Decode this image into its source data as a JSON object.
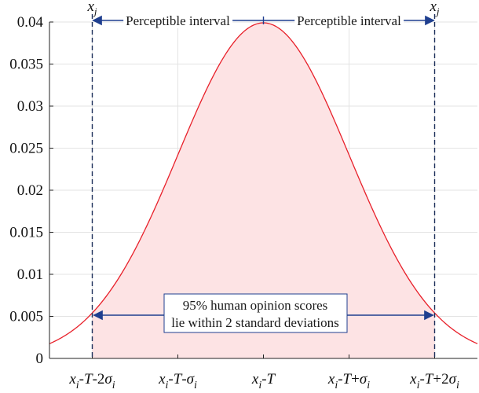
{
  "chart_data": {
    "type": "area",
    "title": "",
    "xlabel": "",
    "ylabel": "",
    "ylim": [
      0,
      0.04
    ],
    "y_ticks": [
      "0",
      "0.005",
      "0.01",
      "0.015",
      "0.02",
      "0.025",
      "0.03",
      "0.035",
      "0.04"
    ],
    "y_tick_values": [
      0,
      0.005,
      0.01,
      0.015,
      0.02,
      0.025,
      0.03,
      0.035,
      0.04
    ],
    "x_ticks": [
      {
        "base": "x",
        "sub": "i",
        "suffix": "-T-2",
        "sigma": true,
        "sigma_sub": "i"
      },
      {
        "base": "x",
        "sub": "i",
        "suffix": "-T-",
        "sigma": true,
        "sigma_sub": "i"
      },
      {
        "base": "x",
        "sub": "i",
        "suffix": "-T",
        "sigma": false,
        "sigma_sub": ""
      },
      {
        "base": "x",
        "sub": "i",
        "suffix": "-T+",
        "sigma": true,
        "sigma_sub": "i"
      },
      {
        "base": "x",
        "sub": "i",
        "suffix": "-T+2",
        "sigma": true,
        "sigma_sub": "i"
      }
    ],
    "x_tick_positions_sd": [
      -2,
      -1,
      0,
      1,
      2
    ],
    "xlim_sd": [
      -2.5,
      2.5
    ],
    "series": [
      {
        "sd_units": [
          -2.5,
          -2.25,
          -2.0,
          -1.75,
          -1.5,
          -1.25,
          -1.0,
          -0.75,
          -0.5,
          -0.25,
          0,
          0.25,
          0.5,
          0.75,
          1.0,
          1.25,
          1.5,
          1.75,
          2.0,
          2.25,
          2.5
        ],
        "density": [
          0.00175,
          0.00317,
          0.0054,
          0.00863,
          0.01295,
          0.01827,
          0.0242,
          0.03011,
          0.03521,
          0.03867,
          0.0399,
          0.03867,
          0.03521,
          0.03011,
          0.0242,
          0.01827,
          0.01295,
          0.00863,
          0.0054,
          0.00317,
          0.00175
        ],
        "color": "#e8202a",
        "shade_between_sd": [
          -2,
          2
        ],
        "shade_color": "#fde3e4"
      }
    ],
    "annotations": {
      "xj_left": {
        "base": "x",
        "sub": "j"
      },
      "xj_right": {
        "base": "x",
        "sub": "j"
      },
      "perceptible_left": "Perceptible interval",
      "perceptible_right": "Perceptible interval",
      "range_line1": "95% human opinion scores",
      "range_line2": "lie within 2 standard deviations",
      "arrow_color": "#1f3f8f",
      "dash_color": "#1c2f5a"
    },
    "grid": true,
    "legend": "none"
  }
}
